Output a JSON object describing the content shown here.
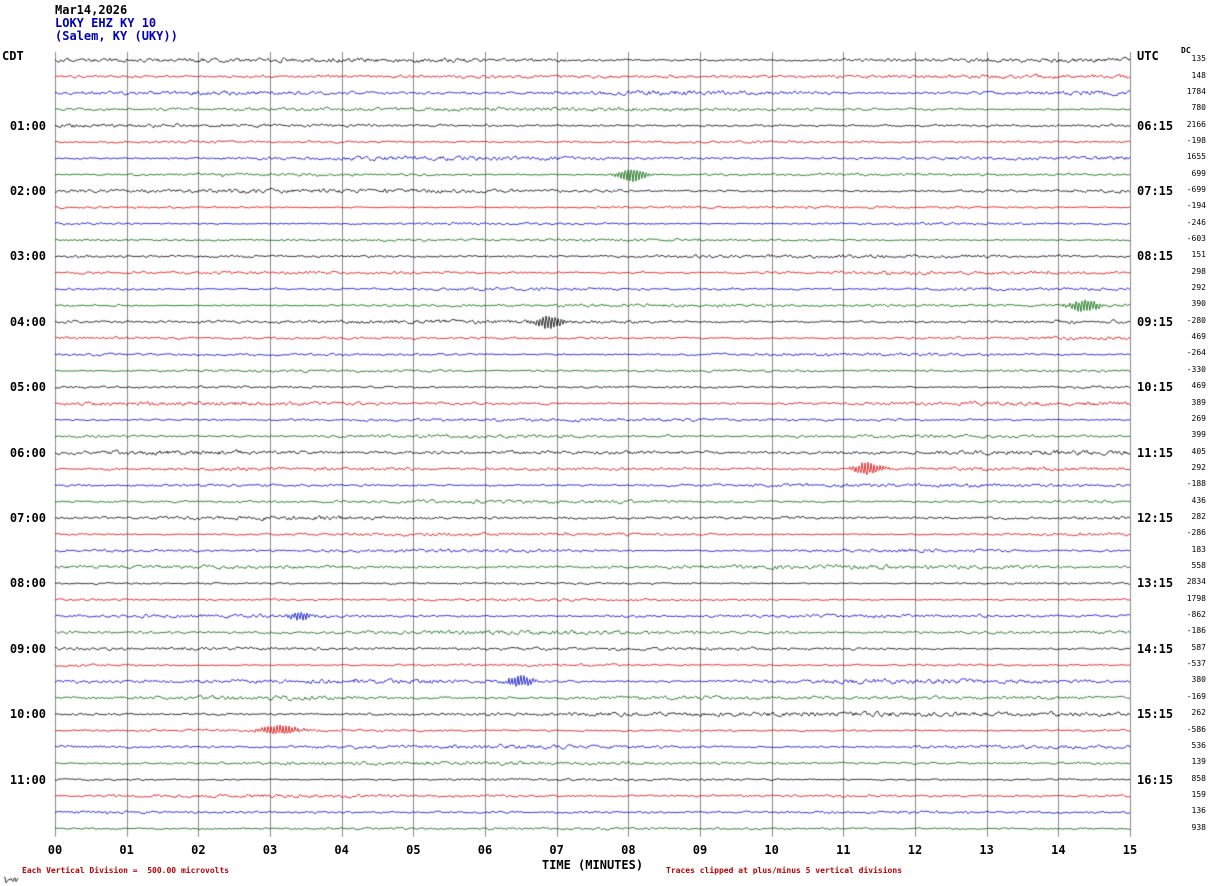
{
  "header": {
    "date_line": "Mar14,2026",
    "station_line": "LOKY EHZ KY 10",
    "location_line": "(Salem, KY (UKY))",
    "left_tz_label": "CDT",
    "right_tz_label": "UTC",
    "dc_column_header": "DC"
  },
  "footer": {
    "x_axis_label": "TIME (MINUTES)",
    "scale_note": "Each Vertical Division =  500.00 microvolts",
    "clip_note": "Traces clipped at plus/minus 5 vertical divisions"
  },
  "chart_data": {
    "type": "line",
    "title": "Helicorder seismogram LOKY EHZ KY 10 (Salem, KY (UKY)) Mar14,2026",
    "x_axis": {
      "label": "TIME (MINUTES)",
      "ticks": [
        "00",
        "01",
        "02",
        "03",
        "04",
        "05",
        "06",
        "07",
        "08",
        "09",
        "10",
        "11",
        "12",
        "13",
        "14",
        "15"
      ],
      "range_minutes": [
        0,
        15
      ]
    },
    "rows": 48,
    "minutes_per_row": 15,
    "trace_color_cycle": [
      "#000000",
      "#dd0000",
      "#0000cc",
      "#006400"
    ],
    "grid_color": "#8a8a8a",
    "microvolts_per_division": 500.0,
    "clip_divisions": 5,
    "left_time_labels": [
      {
        "row": 4,
        "label": "01:00"
      },
      {
        "row": 8,
        "label": "02:00"
      },
      {
        "row": 12,
        "label": "03:00"
      },
      {
        "row": 16,
        "label": "04:00"
      },
      {
        "row": 20,
        "label": "05:00"
      },
      {
        "row": 24,
        "label": "06:00"
      },
      {
        "row": 28,
        "label": "07:00"
      },
      {
        "row": 32,
        "label": "08:00"
      },
      {
        "row": 36,
        "label": "09:00"
      },
      {
        "row": 40,
        "label": "10:00"
      },
      {
        "row": 44,
        "label": "11:00"
      }
    ],
    "right_time_labels": [
      {
        "row": 4,
        "label": "06:15"
      },
      {
        "row": 8,
        "label": "07:15"
      },
      {
        "row": 12,
        "label": "08:15"
      },
      {
        "row": 16,
        "label": "09:15"
      },
      {
        "row": 20,
        "label": "10:15"
      },
      {
        "row": 24,
        "label": "11:15"
      },
      {
        "row": 28,
        "label": "12:15"
      },
      {
        "row": 32,
        "label": "13:15"
      },
      {
        "row": 36,
        "label": "14:15"
      },
      {
        "row": 40,
        "label": "15:15"
      },
      {
        "row": 44,
        "label": "16:15"
      }
    ],
    "dc_offsets": [
      135,
      148,
      1784,
      780,
      2166,
      -198,
      1655,
      699,
      -699,
      -194,
      -246,
      -603,
      151,
      298,
      292,
      390,
      -280,
      469,
      -264,
      -330,
      469,
      389,
      269,
      399,
      405,
      292,
      -188,
      436,
      282,
      -286,
      183,
      558,
      2834,
      1798,
      -862,
      -186,
      587,
      -537,
      380,
      -169,
      262,
      -586,
      536,
      139,
      858,
      159,
      136,
      938
    ],
    "events": [
      {
        "row": 7,
        "minute": 8.05,
        "amplitude": 7.0,
        "width": 10
      },
      {
        "row": 15,
        "minute": 14.37,
        "amplitude": 6.0,
        "width": 11
      },
      {
        "row": 16,
        "minute": 6.88,
        "amplitude": 7.0,
        "width": 9
      },
      {
        "row": 25,
        "minute": 11.34,
        "amplitude": 6.5,
        "width": 10
      },
      {
        "row": 34,
        "minute": 3.42,
        "amplitude": 4.0,
        "width": 8
      },
      {
        "row": 38,
        "minute": 6.49,
        "amplitude": 6.0,
        "width": 9
      },
      {
        "row": 41,
        "minute": 3.14,
        "amplitude": 5.0,
        "width": 14
      }
    ]
  }
}
